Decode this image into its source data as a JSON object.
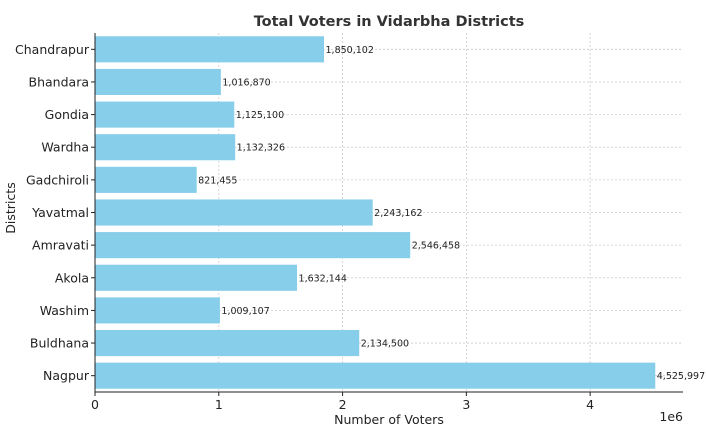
{
  "chart_data": {
    "type": "bar",
    "orientation": "horizontal",
    "title": "Total Voters in Vidarbha Districts",
    "xlabel": "Number of Voters",
    "ylabel": "Districts",
    "x_offset_text": "1e6",
    "xlim": [
      0,
      4750000
    ],
    "xticks": [
      0,
      1000000,
      2000000,
      3000000,
      4000000
    ],
    "xtick_labels": [
      "0",
      "1",
      "2",
      "3",
      "4"
    ],
    "grid": true,
    "bar_color": "#87CEEB",
    "categories": [
      "Chandrapur",
      "Bhandara",
      "Gondia",
      "Wardha",
      "Gadchiroli",
      "Yavatmal",
      "Amravati",
      "Akola",
      "Washim",
      "Buldhana",
      "Nagpur"
    ],
    "values": [
      1850102,
      1016870,
      1125100,
      1132326,
      821455,
      2243162,
      2546458,
      1632144,
      1009107,
      2134500,
      4525997
    ],
    "value_labels": [
      "1,850,102",
      "1,016,870",
      "1,125,100",
      "1,132,326",
      "821,455",
      "2,243,162",
      "2,546,458",
      "1,632,144",
      "1,009,107",
      "2,134,500",
      "4,525,997"
    ]
  }
}
